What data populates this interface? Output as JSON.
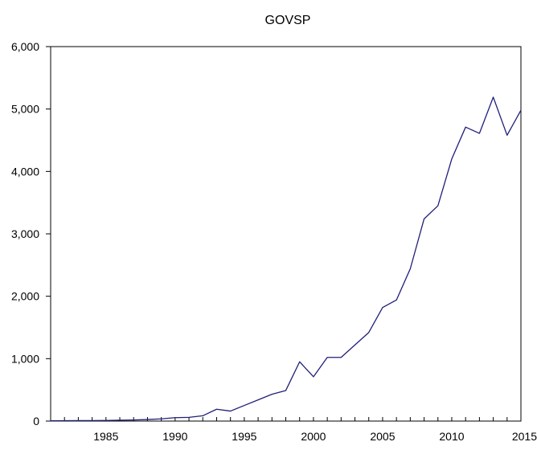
{
  "chart_data": {
    "type": "line",
    "title": "GOVSP",
    "xlabel": "",
    "ylabel": "",
    "xlim": [
      1981,
      2015
    ],
    "ylim": [
      0,
      6000
    ],
    "grid": false,
    "x_ticks": [
      1985,
      1990,
      1995,
      2000,
      2005,
      2010,
      2015
    ],
    "y_ticks": [
      0,
      1000,
      2000,
      3000,
      4000,
      5000,
      6000
    ],
    "y_tick_labels": [
      "0",
      "1,000",
      "2,000",
      "3,000",
      "4,000",
      "5,000",
      "6,000"
    ],
    "x_tick_labels": [
      "1985",
      "1990",
      "1995",
      "2000",
      "2005",
      "2010",
      "2015"
    ],
    "series": [
      {
        "color": "#1f1f7a",
        "x": [
          1981,
          1982,
          1983,
          1984,
          1985,
          1986,
          1987,
          1988,
          1989,
          1990,
          1991,
          1992,
          1993,
          1994,
          1995,
          1996,
          1997,
          1998,
          1999,
          2000,
          2001,
          2002,
          2003,
          2004,
          2005,
          2006,
          2007,
          2008,
          2009,
          2010,
          2011,
          2012,
          2013,
          2014,
          2015
        ],
        "values": [
          5,
          6,
          7,
          8,
          10,
          14,
          18,
          25,
          35,
          55,
          60,
          85,
          190,
          160,
          250,
          340,
          430,
          490,
          950,
          710,
          1020,
          1020,
          1220,
          1420,
          1820,
          1940,
          2440,
          3240,
          3450,
          4200,
          4710,
          4610,
          5190,
          4580,
          4980
        ]
      }
    ]
  }
}
